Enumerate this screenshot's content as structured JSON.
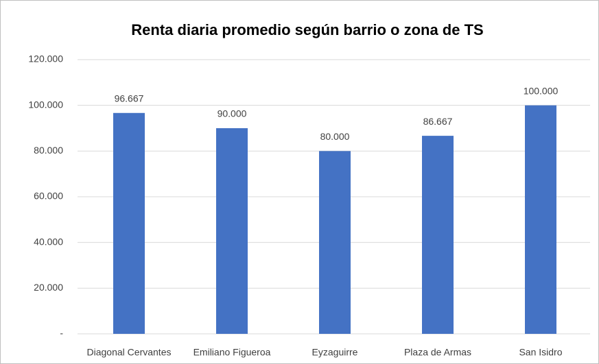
{
  "chart_data": {
    "type": "bar",
    "title": "Renta diaria promedio según barrio o zona de TS",
    "categories": [
      "Diagonal Cervantes",
      "Emiliano Figueroa",
      "Eyzaguirre",
      "Plaza de Armas",
      "San Isidro"
    ],
    "values": [
      96667,
      90000,
      80000,
      86667,
      100000
    ],
    "value_labels": [
      "96.667",
      "90.000",
      "80.000",
      "86.667",
      "100.000"
    ],
    "color": "#4472c4",
    "ylim": [
      0,
      120000
    ],
    "yticks": [
      {
        "value": 0,
        "label": "-"
      },
      {
        "value": 20000,
        "label": "20.000"
      },
      {
        "value": 40000,
        "label": "40.000"
      },
      {
        "value": 60000,
        "label": "60.000"
      },
      {
        "value": 80000,
        "label": "80.000"
      },
      {
        "value": 100000,
        "label": "100.000"
      },
      {
        "value": 120000,
        "label": "120.000"
      }
    ],
    "grid": true
  }
}
